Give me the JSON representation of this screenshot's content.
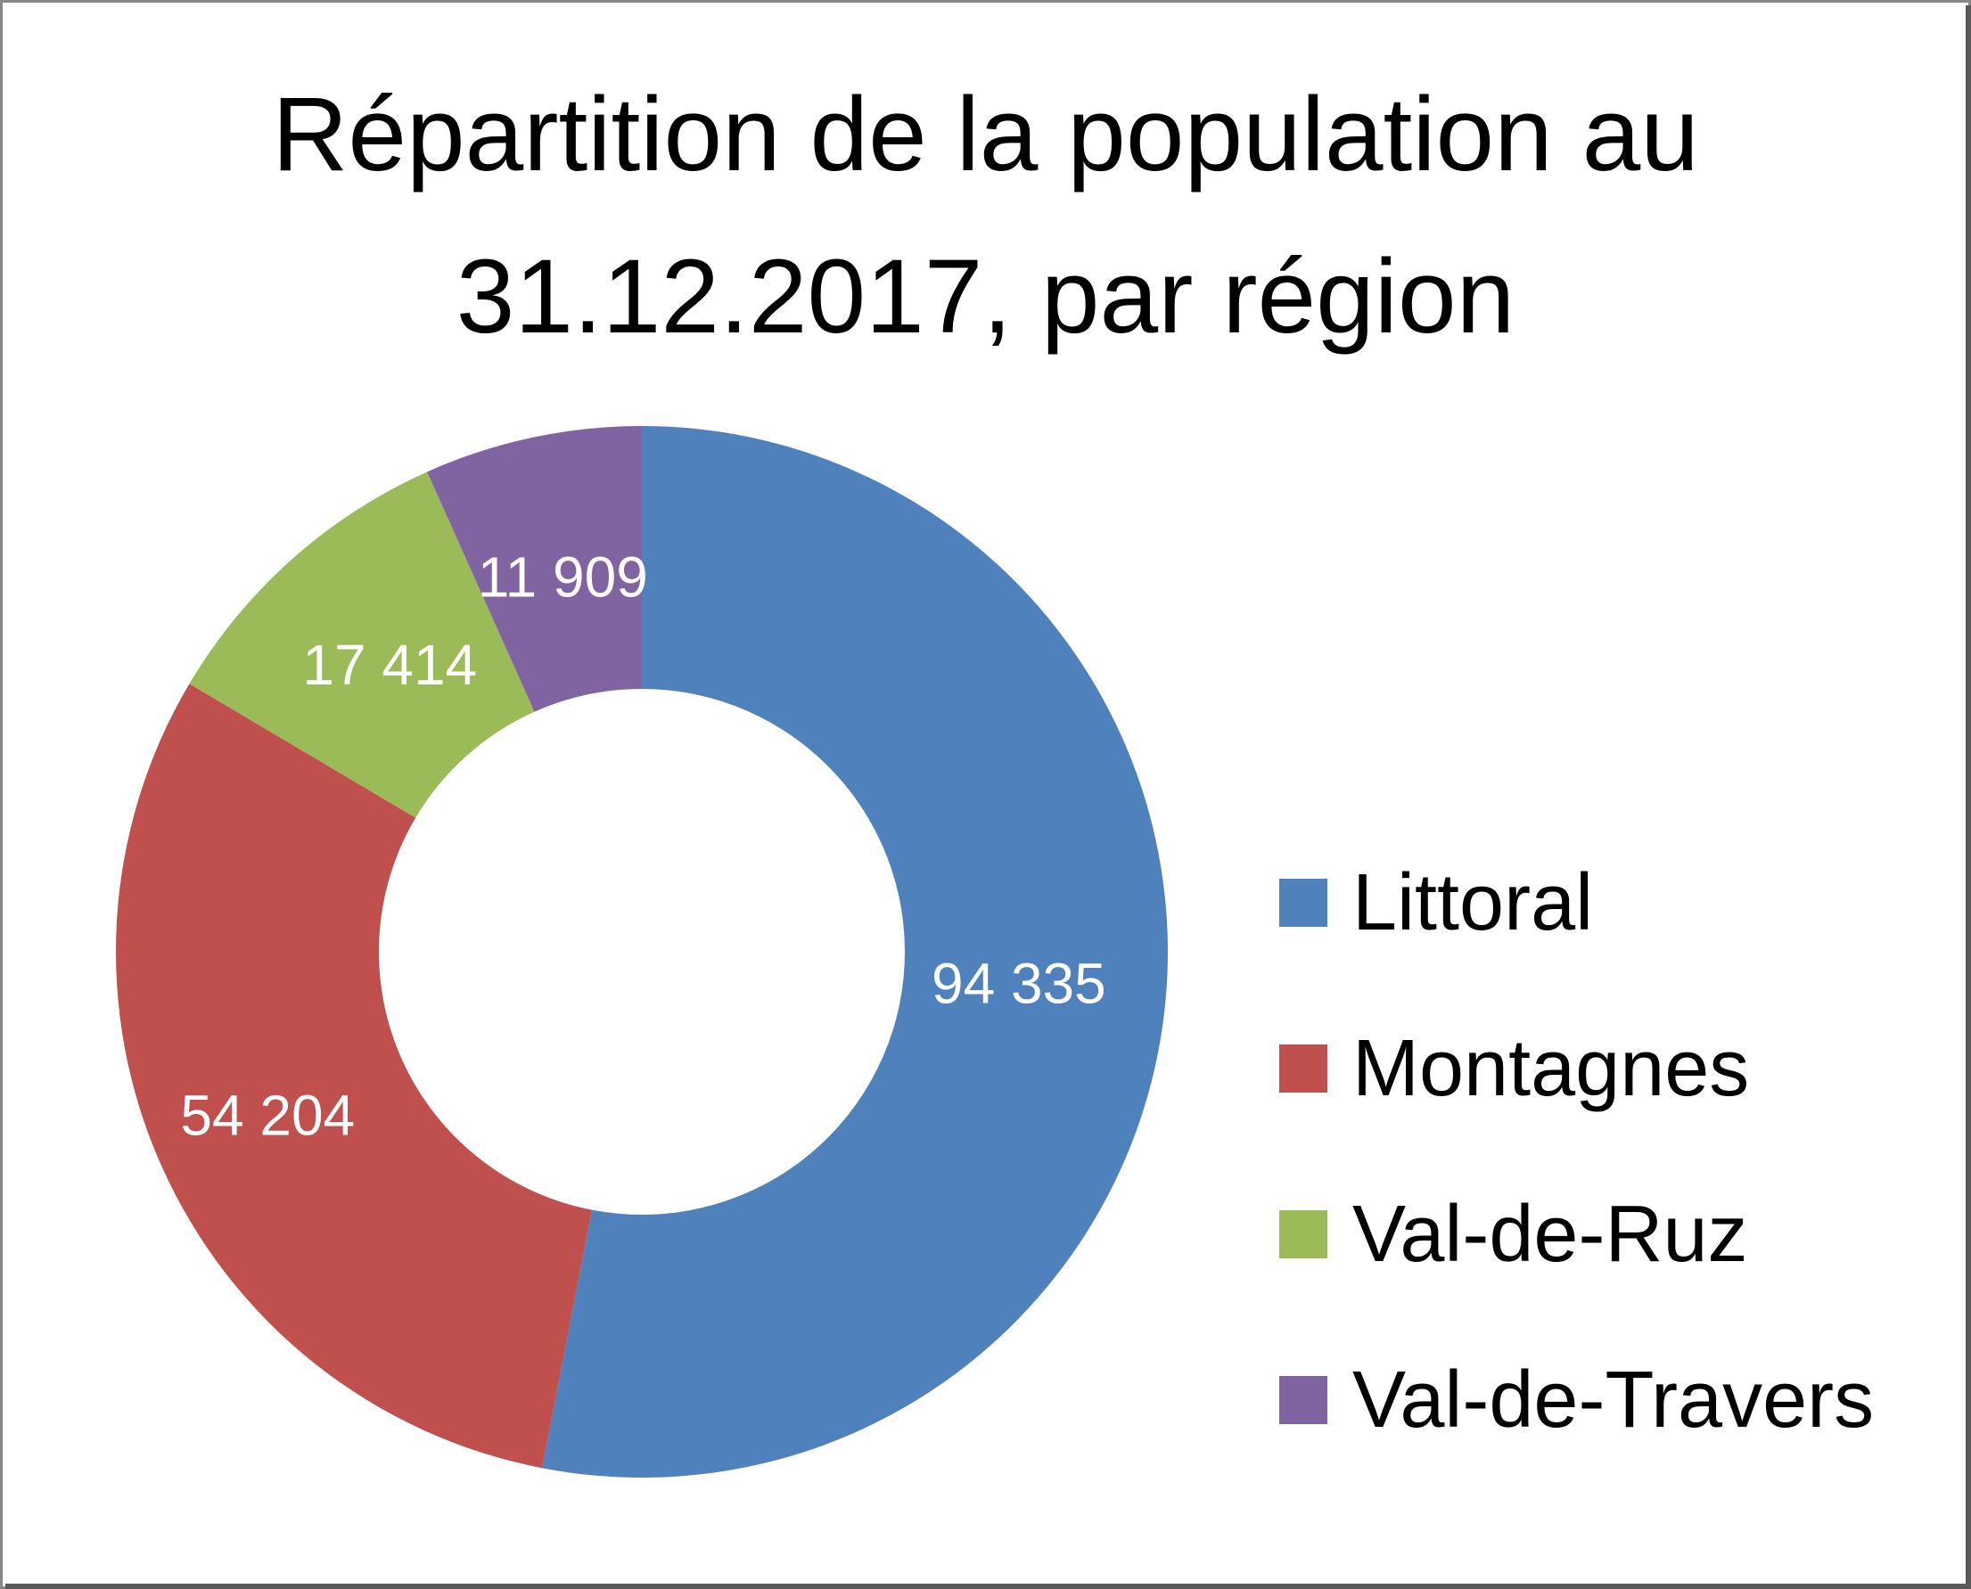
{
  "chart_data": {
    "type": "pie",
    "subtype": "donut",
    "title": "Répartition de la population au 31.12.2017, par région",
    "title_lines": [
      "Répartition de la population au",
      "31.12.2017, par région"
    ],
    "categories": [
      "Littoral",
      "Montagnes",
      "Val-de-Ruz",
      "Val-de-Travers"
    ],
    "values": [
      94335,
      54204,
      17414,
      11909
    ],
    "value_labels": [
      "94 335",
      "54 204",
      "17 414",
      "11 909"
    ],
    "colors": [
      "#4f81bd",
      "#c0504d",
      "#9bbb59",
      "#8064a2"
    ],
    "legend": {
      "position": "right",
      "entries": [
        "Littoral",
        "Montagnes",
        "Val-de-Ruz",
        "Val-de-Travers"
      ]
    }
  }
}
